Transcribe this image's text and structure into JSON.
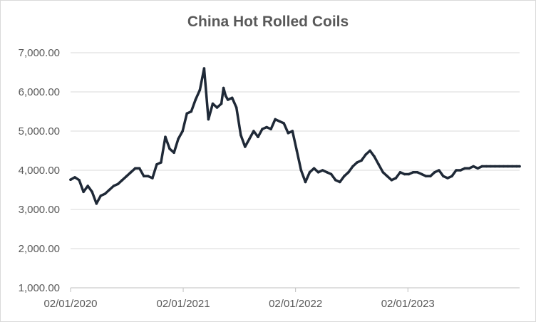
{
  "chart_data": {
    "type": "line",
    "title": "China Hot Rolled Coils",
    "xlabel": "",
    "ylabel": "",
    "ylim": [
      1000,
      7000
    ],
    "y_ticks": [
      "1,000.00",
      "2,000.00",
      "3,000.00",
      "4,000.00",
      "5,000.00",
      "6,000.00",
      "7,000.00"
    ],
    "y_tick_values": [
      1000,
      2000,
      3000,
      4000,
      5000,
      6000,
      7000
    ],
    "x_ticks": [
      "02/01/2020",
      "02/01/2021",
      "02/01/2022",
      "02/01/2023"
    ],
    "x_tick_values": [
      "2020-01-02",
      "2021-01-02",
      "2022-01-02",
      "2023-01-02"
    ],
    "xlim": [
      "2020-01-02",
      "2023-12-31"
    ],
    "grid": "horizontal",
    "legend": "none",
    "colors": {
      "line": "#1f2937",
      "grid": "#d9d9d9",
      "axis": "#bfbfbf",
      "text": "#595959"
    },
    "series": [
      {
        "x": [
          "2020-01-02",
          "2020-01-16",
          "2020-01-30",
          "2020-02-13",
          "2020-02-27",
          "2020-03-12",
          "2020-03-26",
          "2020-04-09",
          "2020-04-23",
          "2020-05-07",
          "2020-05-21",
          "2020-06-04",
          "2020-06-18",
          "2020-07-02",
          "2020-07-16",
          "2020-07-30",
          "2020-08-13",
          "2020-08-27",
          "2020-09-10",
          "2020-09-24",
          "2020-10-08",
          "2020-10-22",
          "2020-11-05",
          "2020-11-19",
          "2020-12-03",
          "2020-12-17",
          "2020-12-31",
          "2021-01-14",
          "2021-01-28",
          "2021-02-11",
          "2021-02-25",
          "2021-03-11",
          "2021-03-25",
          "2021-04-08",
          "2021-04-22",
          "2021-05-06",
          "2021-05-13",
          "2021-05-20",
          "2021-05-27",
          "2021-06-10",
          "2021-06-24",
          "2021-07-08",
          "2021-07-22",
          "2021-08-05",
          "2021-08-19",
          "2021-09-02",
          "2021-09-16",
          "2021-09-30",
          "2021-10-14",
          "2021-10-28",
          "2021-11-11",
          "2021-11-25",
          "2021-12-09",
          "2021-12-23",
          "2022-01-06",
          "2022-01-20",
          "2022-02-03",
          "2022-02-17",
          "2022-03-03",
          "2022-03-17",
          "2022-03-31",
          "2022-04-14",
          "2022-04-28",
          "2022-05-12",
          "2022-05-26",
          "2022-06-09",
          "2022-06-23",
          "2022-07-07",
          "2022-07-21",
          "2022-08-04",
          "2022-08-18",
          "2022-09-01",
          "2022-09-15",
          "2022-09-29",
          "2022-10-13",
          "2022-10-27",
          "2022-11-10",
          "2022-11-24",
          "2022-12-08",
          "2022-12-22",
          "2023-01-05",
          "2023-01-19",
          "2023-02-02",
          "2023-02-16",
          "2023-03-02",
          "2023-03-16",
          "2023-03-30",
          "2023-04-13",
          "2023-04-27",
          "2023-05-11",
          "2023-05-25",
          "2023-06-08",
          "2023-06-22",
          "2023-07-06",
          "2023-07-20",
          "2023-08-03",
          "2023-08-17",
          "2023-08-31",
          "2023-09-14",
          "2023-09-28",
          "2023-10-12",
          "2023-10-26",
          "2023-11-09",
          "2023-11-23",
          "2023-12-07",
          "2023-12-21",
          "2023-12-31"
        ],
        "values": [
          3760,
          3820,
          3750,
          3450,
          3600,
          3450,
          3150,
          3350,
          3400,
          3500,
          3600,
          3650,
          3750,
          3850,
          3950,
          4050,
          4050,
          3850,
          3850,
          3800,
          4150,
          4200,
          4850,
          4550,
          4450,
          4800,
          5000,
          5450,
          5500,
          5800,
          6050,
          6600,
          5300,
          5700,
          5600,
          5700,
          6100,
          5900,
          5800,
          5850,
          5600,
          4900,
          4600,
          4800,
          5000,
          4850,
          5050,
          5100,
          5050,
          5300,
          5250,
          5200,
          4950,
          5000,
          4500,
          4000,
          3700,
          3950,
          4050,
          3950,
          4000,
          3950,
          3900,
          3750,
          3700,
          3850,
          3950,
          4100,
          4200,
          4250,
          4400,
          4500,
          4350,
          4150,
          3950,
          3850,
          3750,
          3800,
          3950,
          3900,
          3900,
          3950,
          3950,
          3900,
          3850,
          3850,
          3950,
          4000,
          3850,
          3800,
          3850,
          4000,
          4000,
          4050,
          4050,
          4100,
          4050,
          4100,
          4100,
          4100,
          4100,
          4100,
          4100,
          4100,
          4100,
          4100,
          4100
        ]
      }
    ]
  }
}
